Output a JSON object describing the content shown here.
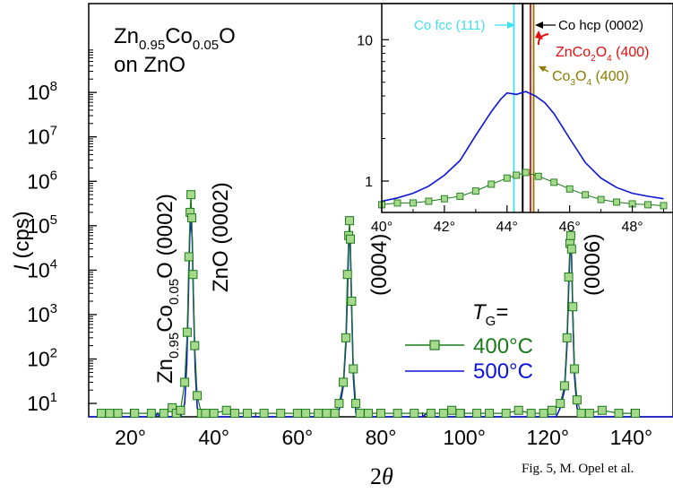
{
  "chart_data": [
    {
      "type": "line",
      "title": "",
      "xlabel_main": "2",
      "xlabel_theta": "θ",
      "ylabel_italic": "I",
      "ylabel_rest": " (cps)",
      "xlim": [
        10,
        150
      ],
      "ylim": [
        5,
        10000000000
      ],
      "yscale": "log",
      "x_ticks": [
        20,
        40,
        60,
        80,
        100,
        120,
        140
      ],
      "x_tick_labels": [
        "20°",
        "40°",
        "60°",
        "80°",
        "100°",
        "120°",
        "140°"
      ],
      "y_ticks": [
        {
          "value": 10,
          "mant": "10",
          "exp": "1"
        },
        {
          "value": 100,
          "mant": "10",
          "exp": "2"
        },
        {
          "value": 1000,
          "mant": "10",
          "exp": "3"
        },
        {
          "value": 10000,
          "mant": "10",
          "exp": "4"
        },
        {
          "value": 100000,
          "mant": "10",
          "exp": "5"
        },
        {
          "value": 1000000,
          "mant": "10",
          "exp": "6"
        },
        {
          "value": 10000000,
          "mant": "10",
          "exp": "7"
        },
        {
          "value": 100000000,
          "mant": "10",
          "exp": "8"
        }
      ],
      "sample": {
        "line1_pre": "Zn",
        "sub1": "0.95",
        "mid": "Co",
        "sub2": "0.05",
        "end": "O",
        "line2": "on ZnO"
      },
      "peak_labels": {
        "film": {
          "pre": "Zn",
          "sub1": "0.95",
          "mid": "Co",
          "sub2": "0.05",
          "end": "O (0002)"
        },
        "substrate": "ZnO (0002)",
        "p0004": "(0004)",
        "p0006": "(0006)"
      },
      "legend": {
        "placement": "bottom-center",
        "title_italic": "T",
        "title_sub": "G",
        "title_end": "=",
        "entries": [
          "400°C",
          "500°C"
        ]
      },
      "series": [
        {
          "name": "400°C",
          "color": "#1a7a1a",
          "marker": "square",
          "marker_fill": "#a6d98c",
          "points": [
            [
              13,
              6
            ],
            [
              15,
              6
            ],
            [
              17,
              6
            ],
            [
              21,
              6
            ],
            [
              25,
              6
            ],
            [
              28,
              6
            ],
            [
              30,
              8
            ],
            [
              31,
              6
            ],
            [
              32,
              7
            ],
            [
              33,
              30
            ],
            [
              33.6,
              400
            ],
            [
              34.0,
              20000
            ],
            [
              34.3,
              200000
            ],
            [
              34.5,
              500000
            ],
            [
              34.7,
              150000
            ],
            [
              35.0,
              8000
            ],
            [
              35.4,
              200
            ],
            [
              36,
              15
            ],
            [
              37,
              6
            ],
            [
              38,
              6
            ],
            [
              40,
              6
            ],
            [
              43,
              7
            ],
            [
              45,
              6
            ],
            [
              48,
              6
            ],
            [
              52,
              6
            ],
            [
              56,
              6
            ],
            [
              60,
              6
            ],
            [
              62,
              6
            ],
            [
              65,
              6
            ],
            [
              67,
              6
            ],
            [
              69,
              6
            ],
            [
              70,
              10
            ],
            [
              71,
              30
            ],
            [
              71.6,
              300
            ],
            [
              72.0,
              8000
            ],
            [
              72.3,
              60000
            ],
            [
              72.5,
              130000
            ],
            [
              72.7,
              50000
            ],
            [
              73.0,
              2000
            ],
            [
              73.4,
              60
            ],
            [
              74,
              10
            ],
            [
              75,
              6
            ],
            [
              77,
              6
            ],
            [
              80,
              6
            ],
            [
              84,
              6
            ],
            [
              88,
              6
            ],
            [
              92,
              6
            ],
            [
              95,
              6
            ],
            [
              97,
              7
            ],
            [
              99,
              6
            ],
            [
              103,
              6
            ],
            [
              106,
              6
            ],
            [
              110,
              6
            ],
            [
              113,
              7
            ],
            [
              116,
              6
            ],
            [
              119,
              6
            ],
            [
              121,
              7
            ],
            [
              123,
              10
            ],
            [
              124,
              25
            ],
            [
              124.6,
              300
            ],
            [
              125.0,
              7000
            ],
            [
              125.3,
              40000
            ],
            [
              125.5,
              60000
            ],
            [
              125.7,
              30000
            ],
            [
              126.0,
              1500
            ],
            [
              126.4,
              60
            ],
            [
              127,
              12
            ],
            [
              128,
              6
            ],
            [
              130,
              6
            ],
            [
              133,
              7
            ],
            [
              137,
              6
            ],
            [
              141,
              6
            ]
          ]
        },
        {
          "name": "500°C",
          "color": "#0a14d9",
          "points": [
            [
              10,
              5
            ],
            [
              26,
              5
            ],
            [
              26.5,
              6
            ],
            [
              27,
              5
            ],
            [
              32,
              5
            ],
            [
              33,
              10
            ],
            [
              33.5,
              80
            ],
            [
              33.9,
              3000
            ],
            [
              34.2,
              60000
            ],
            [
              34.5,
              150000
            ],
            [
              34.8,
              50000
            ],
            [
              35.1,
              2000
            ],
            [
              35.5,
              60
            ],
            [
              36,
              8
            ],
            [
              37,
              5
            ],
            [
              69,
              5
            ],
            [
              70,
              7
            ],
            [
              71,
              25
            ],
            [
              71.6,
              200
            ],
            [
              72.0,
              3000
            ],
            [
              72.3,
              40000
            ],
            [
              72.5,
              90000
            ],
            [
              72.7,
              30000
            ],
            [
              73.0,
              1500
            ],
            [
              73.4,
              40
            ],
            [
              74,
              6
            ],
            [
              75,
              5
            ],
            [
              90,
              5
            ],
            [
              91,
              6
            ],
            [
              92,
              5
            ],
            [
              122,
              5
            ],
            [
              123,
              8
            ],
            [
              124,
              20
            ],
            [
              124.6,
              200
            ],
            [
              125.0,
              4000
            ],
            [
              125.3,
              25000
            ],
            [
              125.5,
              40000
            ],
            [
              125.7,
              20000
            ],
            [
              126.0,
              1000
            ],
            [
              126.4,
              40
            ],
            [
              127,
              8
            ],
            [
              128,
              5
            ],
            [
              150,
              5
            ]
          ]
        }
      ]
    },
    {
      "type": "line",
      "title": "",
      "placement": "inset-top-right",
      "xlim": [
        40,
        49.3
      ],
      "ylim": [
        0.6,
        18
      ],
      "yscale": "log",
      "x_ticks": [
        40,
        42,
        44,
        46,
        48
      ],
      "x_tick_labels": [
        "40°",
        "42°",
        "44°",
        "46°",
        "48°"
      ],
      "y_ticks": [
        1,
        10
      ],
      "y_tick_labels": [
        "1",
        "10"
      ],
      "reference_lines": [
        {
          "x": 44.22,
          "color": "#40e0f0",
          "label": "Co fcc (111)"
        },
        {
          "x": 44.5,
          "color": "#000000",
          "label": "Co hcp (0002)"
        },
        {
          "x": 44.75,
          "color": "#e01010",
          "label_pre": "ZnCo",
          "label_sub": "2",
          "label_mid": "O",
          "label_sub2": "4",
          "label_end": " (400)"
        },
        {
          "x": 44.85,
          "color": "#8c7a00",
          "label_pre": "Co",
          "label_sub": "3",
          "label_mid": "O",
          "label_sub2": "4",
          "label_end": " (400)"
        }
      ],
      "series": [
        {
          "name": "400°C",
          "color": "#1a7a1a",
          "marker": "square",
          "marker_fill": "#a6d98c",
          "points": [
            [
              40.0,
              0.68
            ],
            [
              40.5,
              0.7
            ],
            [
              41.0,
              0.7
            ],
            [
              41.5,
              0.72
            ],
            [
              42.0,
              0.75
            ],
            [
              42.5,
              0.78
            ],
            [
              43.0,
              0.85
            ],
            [
              43.5,
              0.95
            ],
            [
              44.0,
              1.05
            ],
            [
              44.3,
              1.1
            ],
            [
              44.6,
              1.15
            ],
            [
              45.0,
              1.08
            ],
            [
              45.5,
              0.98
            ],
            [
              46.0,
              0.88
            ],
            [
              46.5,
              0.8
            ],
            [
              47.0,
              0.74
            ],
            [
              47.5,
              0.71
            ],
            [
              48.0,
              0.69
            ],
            [
              48.5,
              0.68
            ],
            [
              49.0,
              0.67
            ]
          ]
        },
        {
          "name": "500°C",
          "color": "#0a14d9",
          "points": [
            [
              40.0,
              0.72
            ],
            [
              40.5,
              0.76
            ],
            [
              41.0,
              0.82
            ],
            [
              41.5,
              0.92
            ],
            [
              42.0,
              1.1
            ],
            [
              42.5,
              1.4
            ],
            [
              43.0,
              2.1
            ],
            [
              43.5,
              3.1
            ],
            [
              43.8,
              3.8
            ],
            [
              44.0,
              4.2
            ],
            [
              44.3,
              4.1
            ],
            [
              44.6,
              4.3
            ],
            [
              44.9,
              4.0
            ],
            [
              45.2,
              3.6
            ],
            [
              45.5,
              3.0
            ],
            [
              46.0,
              2.0
            ],
            [
              46.5,
              1.35
            ],
            [
              47.0,
              1.05
            ],
            [
              47.5,
              0.9
            ],
            [
              48.0,
              0.82
            ],
            [
              48.5,
              0.78
            ],
            [
              49.0,
              0.75
            ]
          ]
        }
      ]
    }
  ],
  "caption": "Fig. 5, M. Opel et al."
}
